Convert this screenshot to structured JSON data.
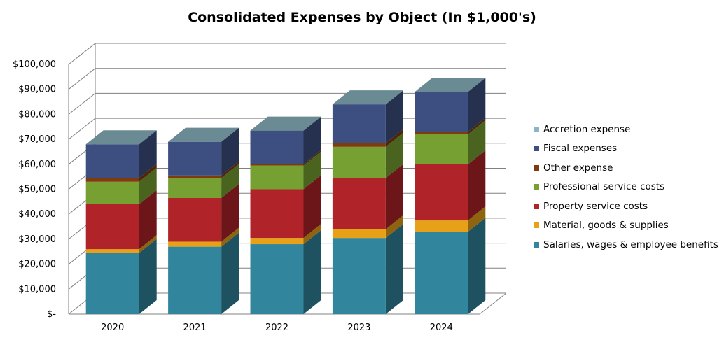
{
  "chart_data": {
    "type": "bar",
    "stacked": true,
    "three_d": true,
    "title": "Consolidated Expenses by Object (In $1,000's)",
    "xlabel": "",
    "ylabel": "",
    "ylim": [
      0,
      100000
    ],
    "y_ticks": [
      0,
      10000,
      20000,
      30000,
      40000,
      50000,
      60000,
      70000,
      80000,
      90000,
      100000
    ],
    "y_tick_labels": [
      "$-",
      "$10,000",
      "$20,000",
      "$30,000",
      "$40,000",
      "$50,000",
      "$60,000",
      "$70,000",
      "$80,000",
      "$90,000",
      "$100,000"
    ],
    "grid": true,
    "legend_position": "right",
    "categories": [
      "2020",
      "2021",
      "2022",
      "2023",
      "2024"
    ],
    "series": [
      {
        "name": "Salaries, wages & employee benefits",
        "color": "#31859C",
        "values": [
          24500,
          27000,
          28000,
          30500,
          33000
        ]
      },
      {
        "name": "Material, goods & supplies",
        "color": "#E6A118",
        "values": [
          1500,
          2000,
          2500,
          3500,
          4500
        ]
      },
      {
        "name": "Property service costs",
        "color": "#B02329",
        "values": [
          18000,
          17500,
          19500,
          20500,
          22500
        ]
      },
      {
        "name": "Professional service costs",
        "color": "#77A032",
        "values": [
          9000,
          8000,
          9500,
          12500,
          12000
        ]
      },
      {
        "name": "Other expense",
        "color": "#7F3A0E",
        "values": [
          1500,
          1000,
          500,
          1500,
          1000
        ]
      },
      {
        "name": "Fiscal expenses",
        "color": "#3D4F80",
        "values": [
          13500,
          13500,
          13500,
          15500,
          16000
        ]
      },
      {
        "name": "Accretion expense",
        "color": "#8DB3C9",
        "values": [
          0,
          0,
          0,
          0,
          0
        ]
      }
    ],
    "legend_order": [
      "Accretion expense",
      "Fiscal expenses",
      "Other expense",
      "Professional service costs",
      "Property service costs",
      "Material, goods & supplies",
      "Salaries, wages & employee benefits"
    ],
    "top_face_color": "#6A8A94"
  }
}
